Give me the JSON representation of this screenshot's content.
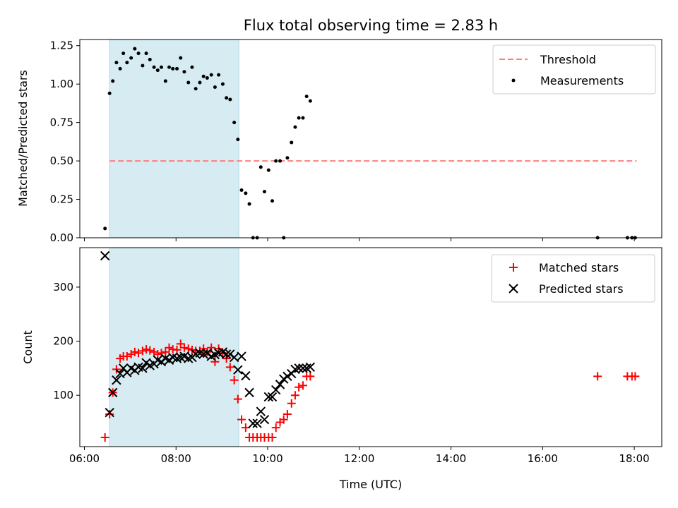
{
  "chart_data": [
    {
      "type": "scatter",
      "title": "Flux total observing time = 2.83 h",
      "xlabel": "",
      "ylabel": "Matched/Predicted stars",
      "xlim": [
        5.9,
        18.6
      ],
      "ylim": [
        0,
        1.29
      ],
      "yticks": [
        0,
        0.25,
        0.5,
        0.75,
        1.0,
        1.25
      ],
      "ytick_labels": [
        "0.00",
        "0.25",
        "0.50",
        "0.75",
        "1.00",
        "1.25"
      ],
      "xticks": [
        6,
        8,
        10,
        12,
        14,
        16,
        18
      ],
      "show_x_tick_labels": false,
      "grid": false,
      "legend_placement": "top-right",
      "shaded_interval": {
        "x_start": 6.55,
        "x_end": 9.37,
        "color": "#add8e6",
        "alpha": 0.5
      },
      "threshold": {
        "name": "Threshold",
        "y": 0.5,
        "x_start": 6.55,
        "x_end": 18.05,
        "color": "#ff7f7f",
        "style": "dashed"
      },
      "series": [
        {
          "name": "Measurements",
          "color": "#000000",
          "marker": "dot",
          "x": [
            6.45,
            6.55,
            6.62,
            6.7,
            6.78,
            6.85,
            6.93,
            7.02,
            7.1,
            7.18,
            7.27,
            7.35,
            7.43,
            7.52,
            7.6,
            7.68,
            7.77,
            7.85,
            7.93,
            8.02,
            8.1,
            8.18,
            8.27,
            8.35,
            8.43,
            8.52,
            8.6,
            8.68,
            8.77,
            8.85,
            8.93,
            9.02,
            9.1,
            9.18,
            9.27,
            9.35,
            9.43,
            9.52,
            9.6,
            9.68,
            9.77,
            9.85,
            9.93,
            10.02,
            10.1,
            10.18,
            10.27,
            10.35,
            10.43,
            10.52,
            10.6,
            10.68,
            10.77,
            10.85,
            10.93,
            17.2,
            17.85,
            17.95,
            18.02
          ],
          "y": [
            0.06,
            0.94,
            1.02,
            1.14,
            1.1,
            1.2,
            1.14,
            1.17,
            1.23,
            1.2,
            1.12,
            1.2,
            1.16,
            1.11,
            1.09,
            1.11,
            1.02,
            1.11,
            1.1,
            1.1,
            1.17,
            1.08,
            1.01,
            1.11,
            0.97,
            1.01,
            1.05,
            1.04,
            1.06,
            0.98,
            1.06,
            1.0,
            0.91,
            0.9,
            0.75,
            0.64,
            0.31,
            0.29,
            0.22,
            0.0,
            0.0,
            0.46,
            0.3,
            0.44,
            0.24,
            0.5,
            0.5,
            0.0,
            0.52,
            0.62,
            0.72,
            0.78,
            0.78,
            0.92,
            0.89,
            0.0,
            0.0,
            0.0,
            0.0
          ]
        }
      ]
    },
    {
      "type": "scatter",
      "title": "",
      "xlabel": "Time (UTC)",
      "ylabel": "Count",
      "xlim": [
        5.9,
        18.6
      ],
      "ylim": [
        5,
        373
      ],
      "yticks": [
        100,
        200,
        300
      ],
      "ytick_labels": [
        "100",
        "200",
        "300"
      ],
      "xticks": [
        6,
        8,
        10,
        12,
        14,
        16,
        18
      ],
      "xtick_labels": [
        "06:00",
        "08:00",
        "10:00",
        "12:00",
        "14:00",
        "16:00",
        "18:00"
      ],
      "grid": false,
      "legend_placement": "top-right",
      "shaded_interval": {
        "x_start": 6.55,
        "x_end": 9.37,
        "color": "#add8e6",
        "alpha": 0.5
      },
      "series": [
        {
          "name": "Matched stars",
          "color": "#ff0000",
          "marker": "plus",
          "x": [
            6.45,
            6.55,
            6.62,
            6.7,
            6.78,
            6.85,
            6.93,
            7.02,
            7.1,
            7.18,
            7.27,
            7.35,
            7.43,
            7.52,
            7.6,
            7.68,
            7.77,
            7.85,
            7.93,
            8.02,
            8.1,
            8.18,
            8.27,
            8.35,
            8.43,
            8.52,
            8.6,
            8.68,
            8.77,
            8.85,
            8.93,
            9.02,
            9.1,
            9.18,
            9.27,
            9.35,
            9.43,
            9.52,
            9.6,
            9.68,
            9.77,
            9.85,
            9.93,
            10.02,
            10.1,
            10.18,
            10.27,
            10.35,
            10.43,
            10.52,
            10.6,
            10.68,
            10.77,
            10.85,
            10.93,
            17.2,
            17.85,
            17.95,
            18.02
          ],
          "y": [
            22,
            65,
            105,
            148,
            168,
            172,
            172,
            176,
            180,
            178,
            182,
            185,
            183,
            180,
            176,
            178,
            180,
            188,
            185,
            184,
            195,
            188,
            186,
            184,
            182,
            182,
            186,
            180,
            188,
            162,
            186,
            178,
            168,
            152,
            128,
            93,
            55,
            40,
            22,
            22,
            22,
            22,
            22,
            22,
            22,
            40,
            50,
            55,
            65,
            85,
            100,
            115,
            118,
            135,
            135,
            135,
            135,
            135,
            135
          ]
        },
        {
          "name": "Predicted stars",
          "color": "#000000",
          "marker": "x",
          "x": [
            6.45,
            6.55,
            6.62,
            6.7,
            6.78,
            6.85,
            6.93,
            7.02,
            7.1,
            7.18,
            7.27,
            7.35,
            7.43,
            7.52,
            7.6,
            7.68,
            7.77,
            7.85,
            7.93,
            8.02,
            8.1,
            8.18,
            8.27,
            8.35,
            8.43,
            8.52,
            8.6,
            8.68,
            8.77,
            8.85,
            8.93,
            9.02,
            9.1,
            9.18,
            9.27,
            9.35,
            9.43,
            9.52,
            9.6,
            9.68,
            9.77,
            9.85,
            9.93,
            10.02,
            10.1,
            10.18,
            10.27,
            10.35,
            10.43,
            10.52,
            10.6,
            10.68,
            10.77,
            10.85,
            10.93
          ],
          "y": [
            358,
            68,
            105,
            128,
            140,
            150,
            142,
            150,
            146,
            152,
            150,
            160,
            155,
            158,
            165,
            162,
            168,
            165,
            170,
            168,
            170,
            172,
            168,
            170,
            176,
            178,
            176,
            178,
            172,
            175,
            178,
            180,
            176,
            176,
            170,
            147,
            172,
            136,
            105,
            48,
            48,
            70,
            55,
            97,
            97,
            110,
            120,
            130,
            135,
            140,
            148,
            150,
            150,
            150,
            152
          ]
        }
      ]
    }
  ]
}
